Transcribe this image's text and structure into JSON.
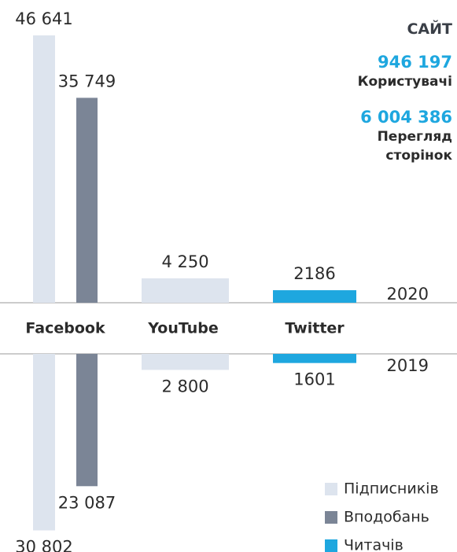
{
  "chart_data": {
    "type": "bar",
    "categories": [
      "Facebook",
      "YouTube",
      "Twitter"
    ],
    "years": [
      "2020",
      "2019"
    ],
    "series": [
      {
        "name": "Підписників",
        "color": "#dde4ee",
        "values": [
          [
            46641,
            4250,
            null
          ],
          [
            30802,
            2800,
            null
          ]
        ],
        "value_labels": [
          [
            "46 641",
            "4 250",
            null
          ],
          [
            "30 802",
            "2 800",
            null
          ]
        ]
      },
      {
        "name": "Вподобань",
        "color": "#7b8596",
        "values": [
          [
            35749,
            null,
            null
          ],
          [
            23087,
            null,
            null
          ]
        ],
        "value_labels": [
          [
            "35 749",
            null,
            null
          ],
          [
            "23 087",
            null,
            null
          ]
        ]
      },
      {
        "name": "Читачів",
        "color": "#1ea7df",
        "values": [
          [
            null,
            null,
            2186
          ],
          [
            null,
            null,
            1601
          ]
        ],
        "value_labels": [
          [
            null,
            null,
            "2186"
          ],
          [
            null,
            null,
            "1601"
          ]
        ]
      }
    ]
  },
  "site": {
    "title": "САЙТ",
    "stats": [
      {
        "value": "946 197",
        "label": "Користувачі"
      },
      {
        "value": "6 004 386",
        "label": "Перегляд сторінок"
      }
    ]
  }
}
